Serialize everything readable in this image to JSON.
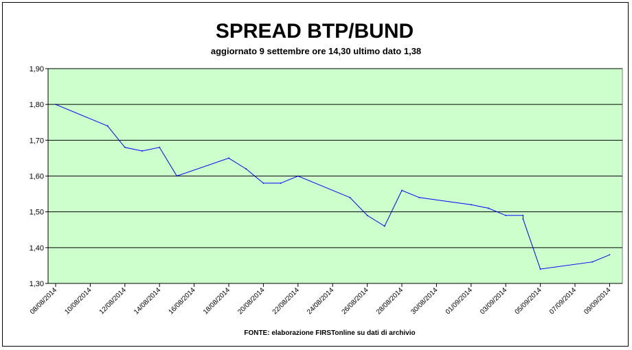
{
  "chart_data": {
    "type": "line",
    "title": "SPREAD BTP/BUND",
    "subtitle": "aggiornato 9 settembre ore 14,30 ultimo dato 1,38",
    "source": "FONTE: elaborazione FIRSTonline su dati di archivio",
    "xlabel": "",
    "ylabel": "",
    "ylim": [
      1.3,
      1.9
    ],
    "y_ticks": [
      "1,30",
      "1,40",
      "1,50",
      "1,60",
      "1,70",
      "1,80",
      "1,90"
    ],
    "x_tick_labels": [
      "08/08/2014",
      "10/08/2014",
      "12/08/2014",
      "14/08/2014",
      "16/08/2014",
      "18/08/2014",
      "20/08/2014",
      "22/08/2014",
      "24/08/2014",
      "26/08/2014",
      "28/08/2014",
      "30/08/2014",
      "01/09/2014",
      "03/09/2014",
      "05/09/2014",
      "07/09/2014",
      "09/09/2014"
    ],
    "grid": true,
    "plot_background": "#ccffcc",
    "line_color": "#0000ff",
    "series": [
      {
        "x": [
          "2014-08-08",
          "2014-08-11",
          "2014-08-11",
          "2014-08-12",
          "2014-08-13",
          "2014-08-14",
          "2014-08-15",
          "2014-08-18",
          "2014-08-19",
          "2014-08-20",
          "2014-08-21",
          "2014-08-22",
          "2014-08-25",
          "2014-08-26",
          "2014-08-27",
          "2014-08-27",
          "2014-08-28",
          "2014-08-29",
          "2014-09-01",
          "2014-09-02",
          "2014-09-03",
          "2014-09-04",
          "2014-09-04",
          "2014-09-05",
          "2014-09-08",
          "2014-09-09"
        ],
        "values": [
          1.8,
          1.74,
          1.74,
          1.68,
          1.67,
          1.68,
          1.6,
          1.65,
          1.62,
          1.58,
          1.58,
          1.6,
          1.54,
          1.49,
          1.46,
          1.46,
          1.56,
          1.54,
          1.52,
          1.51,
          1.49,
          1.49,
          1.48,
          1.34,
          1.36,
          1.38
        ]
      }
    ]
  }
}
